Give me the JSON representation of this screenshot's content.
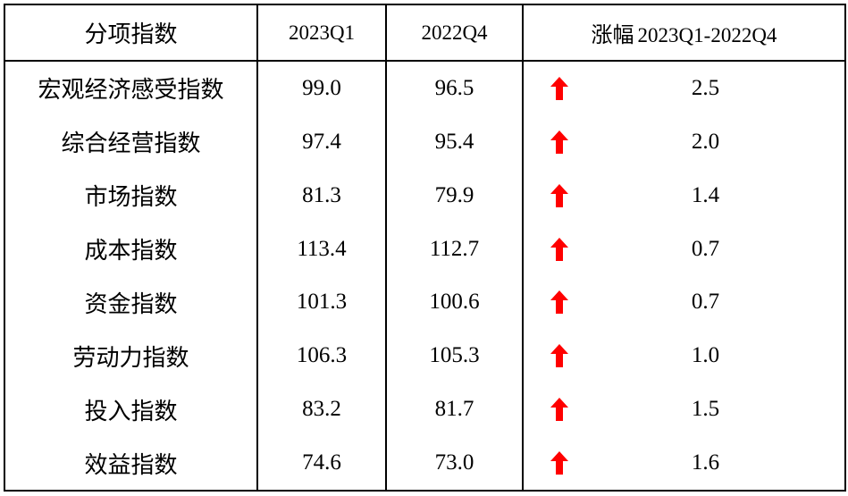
{
  "table": {
    "headers": {
      "category": "分项指数",
      "q1": "2023Q1",
      "q4": "2022Q4",
      "change_cn": "涨幅",
      "change_range": "2023Q1-2022Q4"
    },
    "rows": [
      {
        "name": "宏观经济感受指数",
        "q1": "99.0",
        "q4": "96.5",
        "change": "2.5",
        "direction": "up"
      },
      {
        "name": "综合经营指数",
        "q1": "97.4",
        "q4": "95.4",
        "change": "2.0",
        "direction": "up"
      },
      {
        "name": "市场指数",
        "q1": "81.3",
        "q4": "79.9",
        "change": "1.4",
        "direction": "up"
      },
      {
        "name": "成本指数",
        "q1": "113.4",
        "q4": "112.7",
        "change": "0.7",
        "direction": "up"
      },
      {
        "name": "资金指数",
        "q1": "101.3",
        "q4": "100.6",
        "change": "0.7",
        "direction": "up"
      },
      {
        "name": "劳动力指数",
        "q1": "106.3",
        "q4": "105.3",
        "change": "1.0",
        "direction": "up"
      },
      {
        "name": "投入指数",
        "q1": "83.2",
        "q4": "81.7",
        "change": "1.5",
        "direction": "up"
      },
      {
        "name": "效益指数",
        "q1": "74.6",
        "q4": "73.0",
        "change": "1.6",
        "direction": "up"
      }
    ]
  },
  "colors": {
    "arrow_up": "#ff0000",
    "border": "#000000",
    "text": "#000000"
  },
  "icons": {
    "up": "arrow-up-icon"
  }
}
